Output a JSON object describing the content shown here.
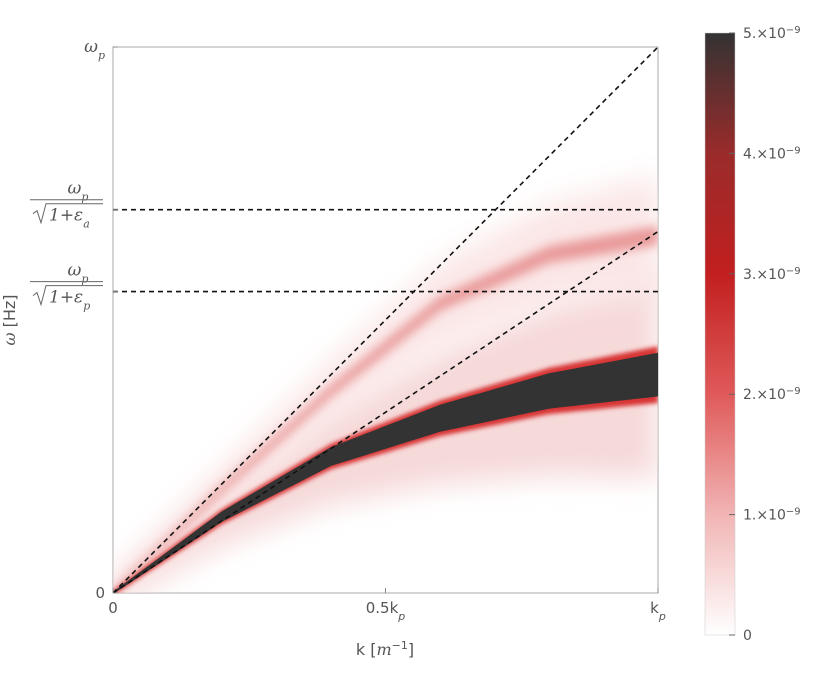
{
  "chart_data": {
    "type": "heatmap",
    "xlabel": "k [m⁻¹]",
    "ylabel": "ω [Hz]",
    "xlim": [
      0,
      1
    ],
    "ylim": [
      0,
      1
    ],
    "x_ticks": [
      {
        "value": 0,
        "label": "0"
      },
      {
        "value": 0.5,
        "label": "0.5k",
        "sub": "p"
      },
      {
        "value": 1,
        "label": "k",
        "sub": "p"
      }
    ],
    "y_ticks": [
      {
        "value": 0,
        "label": "0"
      },
      {
        "value": 1,
        "label": "ω",
        "sub": "p"
      }
    ],
    "y_annotations": [
      {
        "value": 0.702,
        "numerator": "ω",
        "numerator_sub": "p",
        "denominator": "1+ε",
        "denominator_sub": "a"
      },
      {
        "value": 0.552,
        "numerator": "ω",
        "numerator_sub": "p",
        "denominator": "1+ε",
        "denominator_sub": "p"
      }
    ],
    "dashed_lines": [
      {
        "type": "line",
        "slope": 1.0
      },
      {
        "type": "line",
        "slope": 0.662
      },
      {
        "type": "horizontal",
        "value": 0.702
      },
      {
        "type": "horizontal",
        "value": 0.552
      }
    ],
    "upper_branch": [
      [
        0,
        0
      ],
      [
        0.2,
        0.19
      ],
      [
        0.4,
        0.37
      ],
      [
        0.6,
        0.53
      ],
      [
        0.8,
        0.62
      ],
      [
        1.0,
        0.655
      ]
    ],
    "lower_branch": [
      [
        0,
        0
      ],
      [
        0.2,
        0.14
      ],
      [
        0.4,
        0.25
      ],
      [
        0.6,
        0.32
      ],
      [
        0.8,
        0.37
      ],
      [
        1.0,
        0.4
      ]
    ],
    "colorbar": {
      "min": 0,
      "max": 5e-09,
      "ticks": [
        {
          "value": 0,
          "label": "0"
        },
        {
          "value": 1e-09,
          "label": "1.×10",
          "exp": "−9"
        },
        {
          "value": 2e-09,
          "label": "2.×10",
          "exp": "−9"
        },
        {
          "value": 3e-09,
          "label": "3.×10",
          "exp": "−9"
        },
        {
          "value": 4e-09,
          "label": "4.×10",
          "exp": "−9"
        },
        {
          "value": 5e-09,
          "label": "5.×10",
          "exp": "−9"
        }
      ],
      "colors": [
        "#ffffff",
        "#f1b4b4",
        "#e05a5a",
        "#c21f1f",
        "#9a2b2b",
        "#333333"
      ]
    },
    "grid": false,
    "legend": "none"
  }
}
